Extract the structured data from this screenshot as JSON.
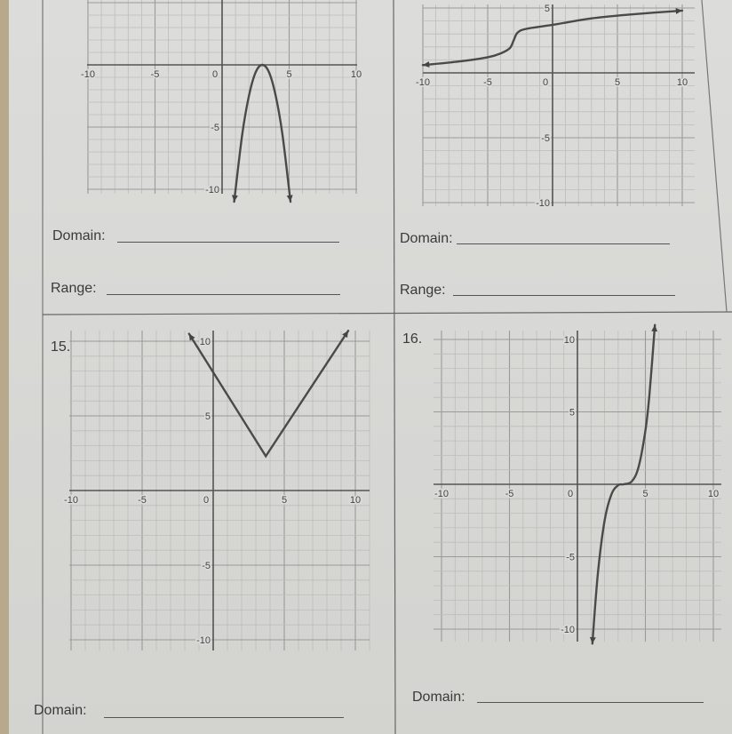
{
  "problems": {
    "p13": {
      "domain_label": "Domain:",
      "range_label": "Range:"
    },
    "p14": {
      "domain_label": "Domain:",
      "range_label": "Range:"
    },
    "p15": {
      "number": "15.",
      "domain_label": "Domain:"
    },
    "p16": {
      "number": "16.",
      "domain_label": "Domain:"
    }
  },
  "chart_data": [
    {
      "type": "line",
      "xlim": [
        -10,
        10
      ],
      "ylim": [
        -11,
        5
      ],
      "grid": true,
      "xticks": [
        "-10",
        "-5",
        "0",
        "5",
        "10"
      ],
      "yticks": [
        "-5",
        "-10"
      ],
      "arrows": "both-ends-down",
      "points": [
        [
          0.9,
          -11
        ],
        [
          1.5,
          -5.6
        ],
        [
          2,
          -2.5
        ],
        [
          2.5,
          -0.6
        ],
        [
          3,
          0
        ],
        [
          3.5,
          -0.6
        ],
        [
          4,
          -2.5
        ],
        [
          4.5,
          -5.6
        ],
        [
          5.1,
          -11
        ]
      ]
    },
    {
      "type": "line",
      "xlim": [
        -10,
        10
      ],
      "ylim": [
        -10,
        5
      ],
      "grid": true,
      "xticks": [
        "-10",
        "-5",
        "0",
        "5",
        "10"
      ],
      "yticks": [
        "5",
        "-5",
        "-10"
      ],
      "arrows": "both-ends",
      "points": [
        [
          -10,
          0.6
        ],
        [
          -7,
          0.9
        ],
        [
          -5,
          1.2
        ],
        [
          -4,
          1.5
        ],
        [
          -3.3,
          1.9
        ],
        [
          -3,
          2.5
        ],
        [
          -2.7,
          3.1
        ],
        [
          -2,
          3.4
        ],
        [
          0,
          3.7
        ],
        [
          3,
          4.2
        ],
        [
          6,
          4.5
        ],
        [
          10,
          4.8
        ]
      ]
    },
    {
      "type": "line",
      "xlim": [
        -10,
        10
      ],
      "ylim": [
        -11,
        11
      ],
      "grid": true,
      "xticks": [
        "-10",
        "-5",
        "0",
        "5",
        "10"
      ],
      "yticks": [
        "10",
        "5",
        "-5",
        "-10"
      ],
      "arrows": "both-ends",
      "points": [
        [
          -1.7,
          10.5
        ],
        [
          3.7,
          2.3
        ],
        [
          9.5,
          10.7
        ]
      ]
    },
    {
      "type": "line",
      "xlim": [
        -10,
        10
      ],
      "ylim": [
        -11,
        11
      ],
      "grid": true,
      "xticks": [
        "-10",
        "-5",
        "0",
        "5",
        "10"
      ],
      "yticks": [
        "10",
        "5",
        "-5",
        "-10"
      ],
      "arrows": "both-ends",
      "points": [
        [
          1.1,
          -11
        ],
        [
          1.5,
          -6.2
        ],
        [
          2,
          -2.5
        ],
        [
          2.5,
          -0.7
        ],
        [
          3,
          -0.06
        ],
        [
          3.4,
          0
        ],
        [
          4,
          0.2
        ],
        [
          4.5,
          1.2
        ],
        [
          5,
          3.7
        ],
        [
          5.3,
          6.2
        ],
        [
          5.7,
          11
        ]
      ]
    }
  ]
}
